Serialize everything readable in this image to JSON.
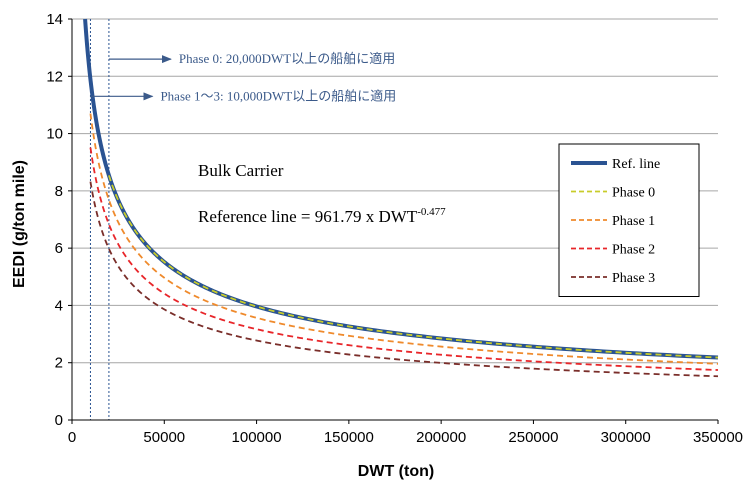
{
  "chart_data": {
    "type": "line",
    "xlabel": "DWT (ton)",
    "ylabel": "EEDI (g/ton mile)",
    "xlim": [
      0,
      350000
    ],
    "ylim": [
      0,
      14
    ],
    "x_ticks": [
      "0",
      "50000",
      "100000",
      "150000",
      "200000",
      "250000",
      "300000",
      "350000"
    ],
    "y_ticks": [
      "0",
      "2",
      "4",
      "6",
      "8",
      "10",
      "12",
      "14"
    ],
    "grid": "horizontal",
    "reference_formula": {
      "coefficient": 961.79,
      "exponent": -0.477,
      "label_prefix": "Reference  line = 961.79 x DWT",
      "label_exponent": "-0.477"
    },
    "chart_label": "Bulk Carrier",
    "series": [
      {
        "name": "Ref. line",
        "factor": 1.0,
        "x_min": 7000,
        "color": "#2a5392",
        "style": "solid"
      },
      {
        "name": "Phase 0",
        "factor": 1.0,
        "x_min": 20000,
        "color": "#c8cc2a",
        "style": "dashed"
      },
      {
        "name": "Phase 1",
        "factor": 0.9,
        "x_min": 10000,
        "color": "#ef8a2c",
        "style": "dashed"
      },
      {
        "name": "Phase 2",
        "factor": 0.8,
        "x_min": 10000,
        "color": "#e8262a",
        "style": "dashed"
      },
      {
        "name": "Phase 3",
        "factor": 0.7,
        "x_min": 10000,
        "color": "#7a2e2a",
        "style": "dashed"
      }
    ],
    "vertical_lines": [
      10000,
      20000
    ],
    "annotations": [
      {
        "text": "Phase 0: 20,000DWT以上の船舶に適用",
        "x": 20000,
        "y": 12.6
      },
      {
        "text": "Phase 1～3: 10,000DWT以上の船舶に適用",
        "x": 10000,
        "y": 11.3
      }
    ],
    "legend_position": "right"
  }
}
